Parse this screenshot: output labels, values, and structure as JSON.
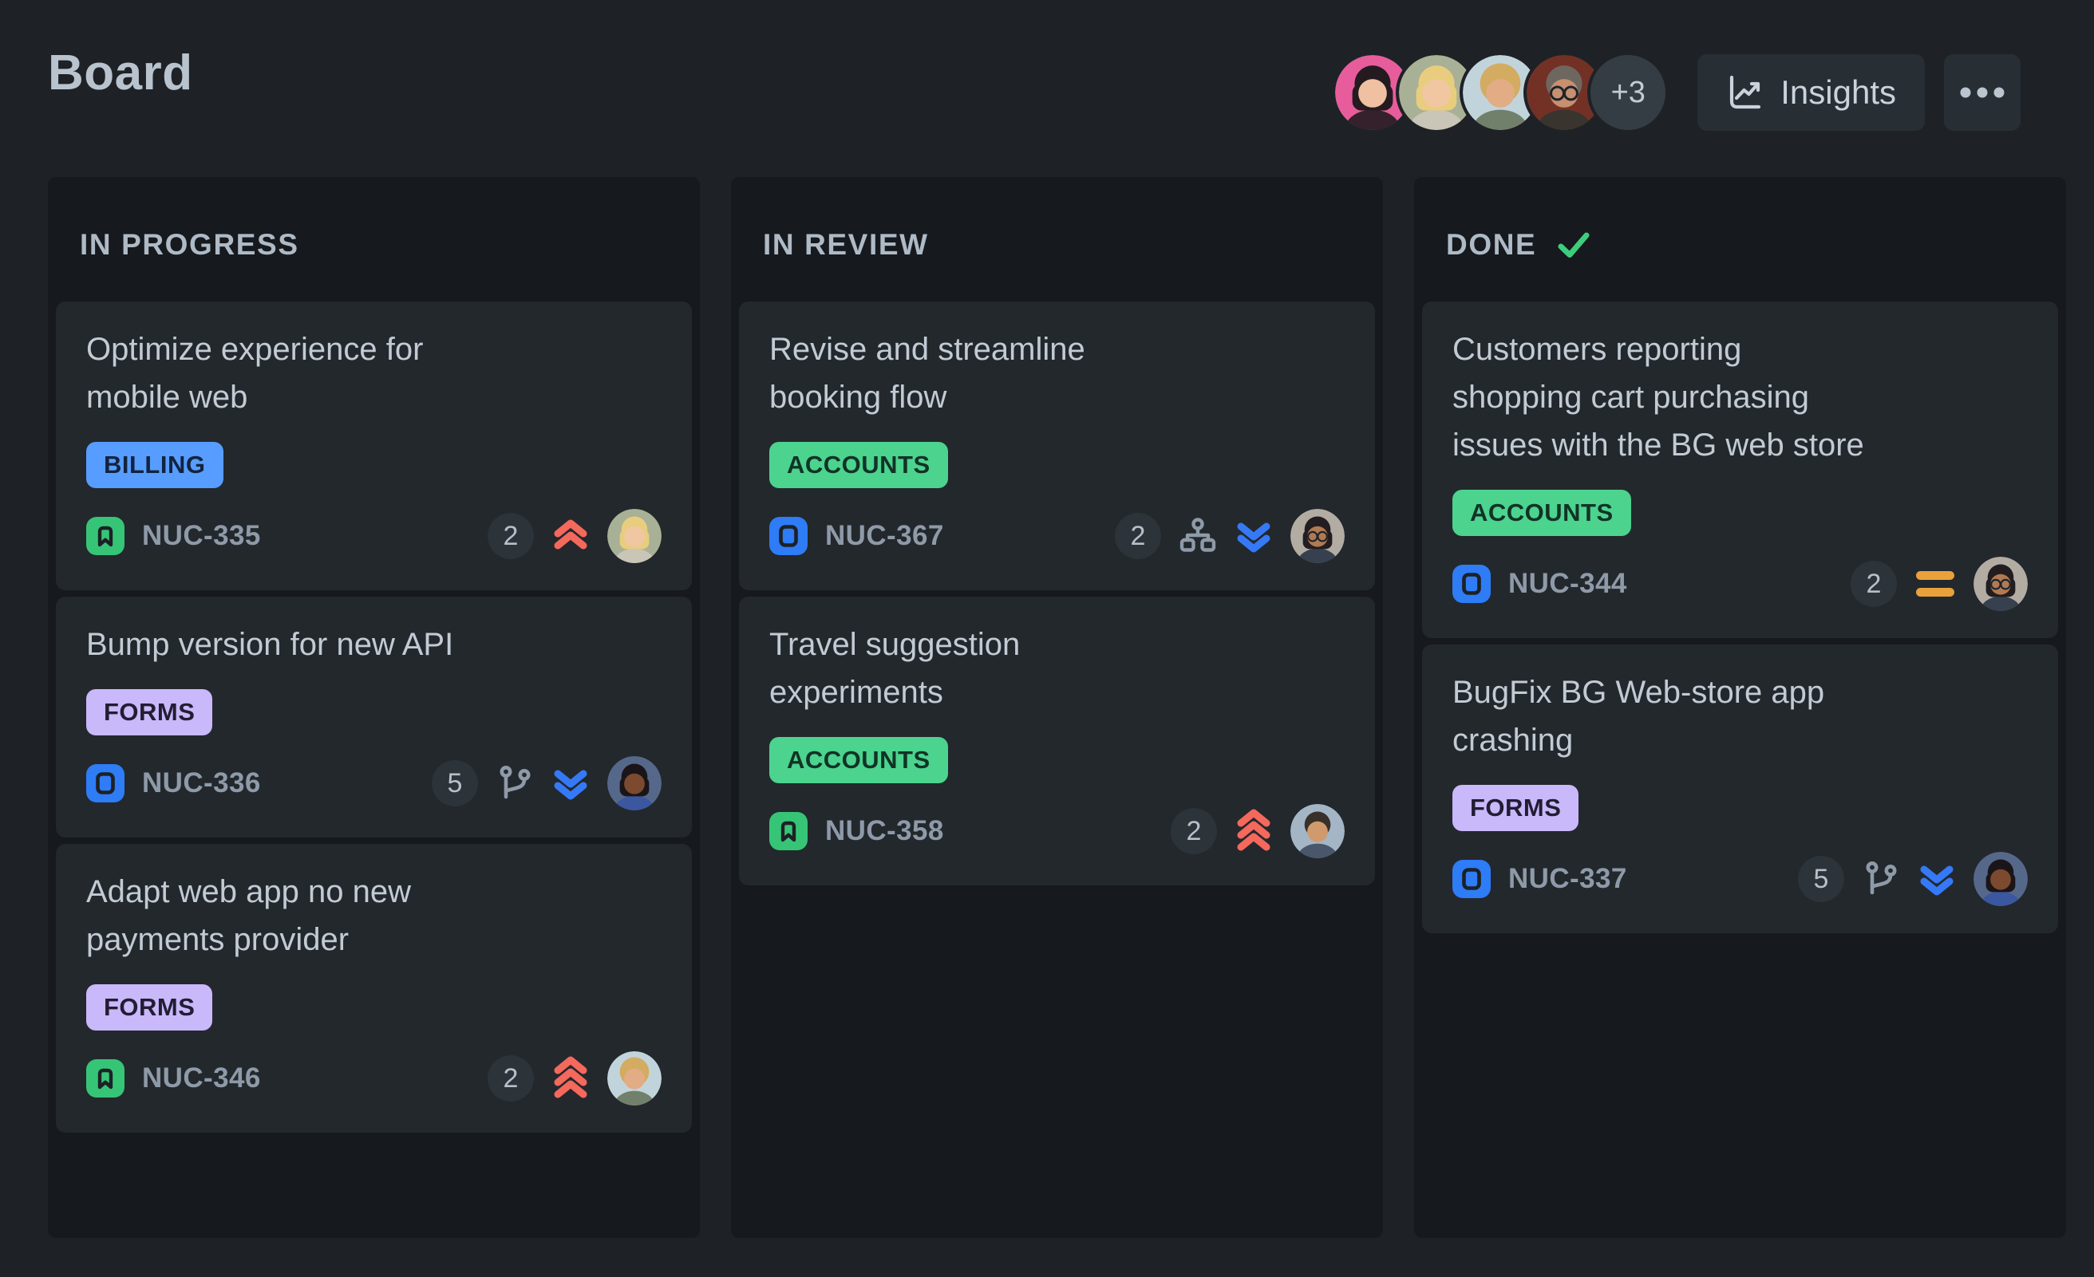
{
  "page": {
    "title": "Board"
  },
  "header": {
    "insights_label": "Insights",
    "overflow_label": "+3",
    "avatar_ids": [
      "mei",
      "anna",
      "leo",
      "carl"
    ]
  },
  "people": {
    "mei": {
      "bg": "#E75D9C",
      "skin": "#EFC0A1",
      "hair": "#241B20",
      "shirt": "#35212B",
      "hair_style": "long",
      "glasses": false
    },
    "anna": {
      "bg": "#A8B096",
      "skin": "#F0C7A1",
      "hair": "#E9CD7E",
      "shirt": "#C9C6B8",
      "hair_style": "long",
      "glasses": false
    },
    "leo": {
      "bg": "#C2D4DB",
      "skin": "#E2AC85",
      "hair": "#D3AC62",
      "shirt": "#71806B",
      "hair_style": "curly",
      "glasses": false
    },
    "carl": {
      "bg": "#733126",
      "skin": "#C79070",
      "hair": "#6E675F",
      "shirt": "#3A342E",
      "hair_style": "short",
      "glasses": true
    },
    "imani": {
      "bg": "#56688A",
      "skin": "#7C4A2E",
      "hair": "#1A1518",
      "shirt": "#3B57A0",
      "hair_style": "long",
      "glasses": false
    },
    "priya": {
      "bg": "#B3ACA3",
      "skin": "#B07A52",
      "hair": "#221D20",
      "shirt": "#36404E",
      "hair_style": "long",
      "glasses": true
    },
    "omar": {
      "bg": "#A4B6C6",
      "skin": "#D09A6C",
      "hair": "#39302A",
      "shirt": "#4A566A",
      "hair_style": "short",
      "glasses": false
    }
  },
  "labels": {
    "BILLING": {
      "bg": "#579DFF",
      "text": "#13233F"
    },
    "FORMS": {
      "bg": "#C9B8FA",
      "text": "#221D33"
    },
    "ACCOUNTS": {
      "bg": "#4CD38E",
      "text": "#113326"
    }
  },
  "colors": {
    "page-bg": "#1E2226",
    "column-bg": "#16191D",
    "card-bg": "#23282D",
    "heading-text": "#B9C3CE",
    "column-header-text": "#AEBAC6",
    "card-title-text": "#C2CBD4",
    "key-text": "#8E9AA8",
    "count-bg": "#2C3339",
    "count-text": "#B6C0CB",
    "button-bg": "#272E34",
    "button-text": "#C9D3DC",
    "plus-bg": "#353D44",
    "plus-text": "#C2CCD6",
    "check-green": "#3ECD7C",
    "priority-up": "#F5685C",
    "priority-down": "#3579F6",
    "priority-medium": "#E9A13B",
    "meta-icon": "#8E9AA8",
    "story-icon-bg": "#36C576",
    "task-icon-bg": "#2E7CF6",
    "type-glyph": "#1D2125"
  },
  "board": {
    "columns": [
      {
        "title": "IN PROGRESS",
        "done": false,
        "cards": [
          {
            "title": "Optimize experience for mobile web",
            "title_lines": [
              "Optimize experience for",
              "mobile web"
            ],
            "label": "BILLING",
            "type": "story",
            "key": "NUC-335",
            "count": "2",
            "meta": null,
            "priority": "up-2",
            "assignee": "anna"
          },
          {
            "title": "Bump version for new API",
            "title_lines": [
              "Bump version for new API"
            ],
            "label": "FORMS",
            "type": "task",
            "key": "NUC-336",
            "count": "5",
            "meta": "branch",
            "priority": "down-2",
            "assignee": "imani"
          },
          {
            "title": "Adapt web app no new payments provider",
            "title_lines": [
              "Adapt web app no new",
              "payments provider"
            ],
            "label": "FORMS",
            "type": "story",
            "key": "NUC-346",
            "count": "2",
            "meta": null,
            "priority": "up-3",
            "assignee": "leo"
          }
        ]
      },
      {
        "title": "IN REVIEW",
        "done": false,
        "cards": [
          {
            "title": "Revise and streamline booking flow",
            "title_lines": [
              "Revise and streamline",
              "booking flow"
            ],
            "label": "ACCOUNTS",
            "type": "task",
            "key": "NUC-367",
            "count": "2",
            "meta": "sitemap",
            "priority": "down-2",
            "assignee": "priya"
          },
          {
            "title": "Travel suggestion experiments",
            "title_lines": [
              "Travel suggestion",
              "experiments"
            ],
            "label": "ACCOUNTS",
            "type": "story",
            "key": "NUC-358",
            "count": "2",
            "meta": null,
            "priority": "up-3",
            "assignee": "omar"
          }
        ]
      },
      {
        "title": "DONE",
        "done": true,
        "cards": [
          {
            "title": "Customers reporting shopping cart purchasing issues with the BG web store",
            "title_lines": [
              "Customers reporting",
              "shopping cart purchasing",
              "issues with the BG web store"
            ],
            "label": "ACCOUNTS",
            "type": "task",
            "key": "NUC-344",
            "count": "2",
            "meta": null,
            "priority": "medium",
            "assignee": "priya"
          },
          {
            "title": "BugFix BG Web-store app crashing",
            "title_lines": [
              "BugFix BG Web-store app",
              "crashing"
            ],
            "label": "FORMS",
            "type": "task",
            "key": "NUC-337",
            "count": "5",
            "meta": "branch",
            "priority": "down-2",
            "assignee": "imani"
          }
        ]
      }
    ]
  }
}
